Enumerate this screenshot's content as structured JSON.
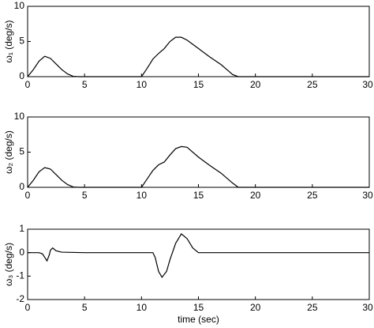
{
  "chart_data": [
    {
      "type": "line",
      "ylabel": "ω₁ (deg/s)",
      "x": [
        0,
        0.5,
        1,
        1.5,
        2,
        2.5,
        3,
        3.5,
        4,
        4.5,
        10,
        10.5,
        11,
        11.5,
        12,
        12.5,
        13,
        13.5,
        14,
        15,
        16,
        17,
        17.5,
        18,
        18.5,
        30
      ],
      "series": [
        {
          "color": "#000000",
          "values": [
            0,
            1.0,
            2.2,
            2.9,
            2.6,
            1.8,
            1.0,
            0.4,
            0.05,
            0,
            0,
            1.2,
            2.5,
            3.3,
            4.0,
            5.0,
            5.6,
            5.6,
            5.2,
            4.0,
            2.8,
            1.7,
            1.0,
            0.3,
            0,
            0
          ]
        }
      ],
      "xlim": [
        0,
        30
      ],
      "xticks": [
        0,
        5,
        10,
        15,
        20,
        25,
        30
      ],
      "ylim": [
        0,
        10
      ],
      "yticks": [
        0,
        5,
        10
      ]
    },
    {
      "type": "line",
      "ylabel": "ω₂ (deg/s)",
      "x": [
        0,
        0.5,
        1,
        1.5,
        2,
        2.5,
        3,
        3.5,
        4,
        4.5,
        10,
        10.5,
        11,
        11.5,
        12,
        12.5,
        13,
        13.5,
        14,
        15,
        16,
        17,
        18,
        18.5,
        30
      ],
      "series": [
        {
          "color": "#000000",
          "values": [
            0,
            1.0,
            2.2,
            2.8,
            2.6,
            1.8,
            1.0,
            0.4,
            0.05,
            0,
            0,
            1.2,
            2.4,
            3.2,
            3.6,
            4.6,
            5.5,
            5.8,
            5.7,
            4.3,
            3.1,
            2.0,
            0.6,
            0,
            0
          ]
        }
      ],
      "xlim": [
        0,
        30
      ],
      "xticks": [
        0,
        5,
        10,
        15,
        20,
        25,
        30
      ],
      "ylim": [
        0,
        10
      ],
      "yticks": [
        0,
        5,
        10
      ]
    },
    {
      "type": "line",
      "ylabel": "ω₃ (deg/s)",
      "xlabel": "time (sec)",
      "x": [
        0,
        1,
        1.3,
        1.5,
        1.7,
        1.9,
        2,
        2.2,
        2.5,
        3,
        5,
        11,
        11.2,
        11.5,
        11.8,
        12.2,
        12.5,
        13,
        13.5,
        14,
        14.5,
        15,
        30
      ],
      "series": [
        {
          "color": "#000000",
          "values": [
            0,
            0,
            -0.05,
            -0.2,
            -0.35,
            -0.1,
            0.1,
            0.2,
            0.08,
            0.02,
            0,
            0,
            -0.2,
            -0.8,
            -1.05,
            -0.8,
            -0.3,
            0.4,
            0.8,
            0.6,
            0.2,
            0,
            0
          ]
        }
      ],
      "xlim": [
        0,
        30
      ],
      "xticks": [
        0,
        5,
        10,
        15,
        20,
        25,
        30
      ],
      "ylim": [
        -2,
        1
      ],
      "yticks": [
        -2,
        -1,
        0,
        1
      ]
    }
  ]
}
